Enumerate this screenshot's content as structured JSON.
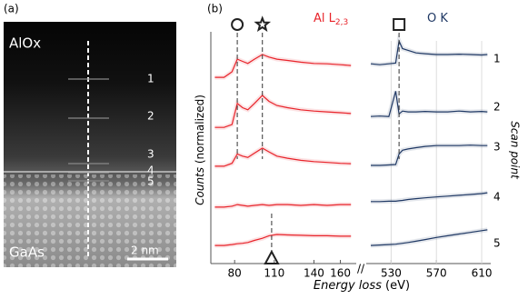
{
  "panel_a": {
    "label": "(a)",
    "top_layer": "AlOx",
    "bottom_layer": "GaAs",
    "scale_bar": "2 nm",
    "points": [
      "1",
      "2",
      "3",
      "4",
      "5"
    ]
  },
  "chart_data": {
    "type": "line",
    "label": "(b)",
    "x_label": "Energy loss",
    "x_unit": "(eV)",
    "y_label": "Counts",
    "y_label_note": "(normalized)",
    "right_label": "Scan point",
    "scan_points": [
      "1",
      "2",
      "3",
      "4",
      "5"
    ],
    "ylim": [
      0,
      5.5
    ],
    "panels": [
      {
        "title": "Al L",
        "title_sub": "2,3",
        "color": "#e8232a",
        "xlim": [
          62,
          172
        ],
        "xticks": [
          80,
          110,
          140,
          160
        ],
        "grid": false,
        "x": [
          65,
          72,
          78,
          82,
          86,
          90,
          95,
          101,
          106,
          112,
          120,
          130,
          140,
          150,
          160,
          168
        ],
        "markers": [
          {
            "x": 82,
            "shape": "circle"
          },
          {
            "x": 101,
            "shape": "star"
          },
          {
            "x": 108,
            "shape": "triangle"
          }
        ],
        "series": [
          {
            "values": [
              4.42,
              4.42,
              4.55,
              4.85,
              4.8,
              4.75,
              4.85,
              4.96,
              4.9,
              4.85,
              4.82,
              4.78,
              4.75,
              4.74,
              4.72,
              4.7
            ]
          },
          {
            "values": [
              3.23,
              3.23,
              3.3,
              3.8,
              3.7,
              3.65,
              3.8,
              3.99,
              3.85,
              3.75,
              3.7,
              3.65,
              3.62,
              3.6,
              3.58,
              3.56
            ]
          },
          {
            "values": [
              2.31,
              2.31,
              2.38,
              2.6,
              2.55,
              2.52,
              2.62,
              2.74,
              2.65,
              2.55,
              2.5,
              2.45,
              2.42,
              2.4,
              2.38,
              2.37
            ]
          },
          {
            "values": [
              1.34,
              1.34,
              1.36,
              1.4,
              1.38,
              1.36,
              1.38,
              1.4,
              1.38,
              1.4,
              1.4,
              1.38,
              1.4,
              1.38,
              1.4,
              1.4
            ]
          },
          {
            "values": [
              0.43,
              0.43,
              0.45,
              0.47,
              0.48,
              0.5,
              0.55,
              0.6,
              0.66,
              0.69,
              0.68,
              0.67,
              0.66,
              0.66,
              0.65,
              0.65
            ]
          }
        ]
      },
      {
        "title": "O K",
        "color": "#1f3864",
        "xlim": [
          508,
          618
        ],
        "xticks": [
          530,
          570,
          610
        ],
        "grid": true,
        "x": [
          512,
          520,
          528,
          534,
          537,
          540,
          545,
          552,
          560,
          570,
          580,
          590,
          600,
          610,
          615
        ],
        "markers": [
          {
            "x": 537,
            "shape": "square"
          }
        ],
        "series": [
          {
            "values": [
              4.74,
              4.72,
              4.74,
              4.76,
              5.28,
              5.1,
              5.06,
              5.0,
              4.98,
              4.96,
              4.96,
              4.97,
              4.96,
              4.95,
              4.96
            ]
          },
          {
            "values": [
              3.49,
              3.5,
              3.49,
              4.09,
              3.55,
              3.62,
              3.6,
              3.6,
              3.61,
              3.6,
              3.6,
              3.62,
              3.6,
              3.61,
              3.6
            ]
          },
          {
            "values": [
              2.33,
              2.33,
              2.34,
              2.35,
              2.6,
              2.69,
              2.72,
              2.75,
              2.78,
              2.8,
              2.8,
              2.8,
              2.81,
              2.8,
              2.8
            ]
          },
          {
            "values": [
              1.47,
              1.47,
              1.48,
              1.48,
              1.49,
              1.5,
              1.52,
              1.54,
              1.56,
              1.58,
              1.6,
              1.62,
              1.64,
              1.66,
              1.68
            ]
          },
          {
            "values": [
              0.43,
              0.44,
              0.45,
              0.46,
              0.47,
              0.48,
              0.5,
              0.53,
              0.57,
              0.62,
              0.66,
              0.7,
              0.74,
              0.78,
              0.8
            ]
          }
        ]
      }
    ]
  }
}
